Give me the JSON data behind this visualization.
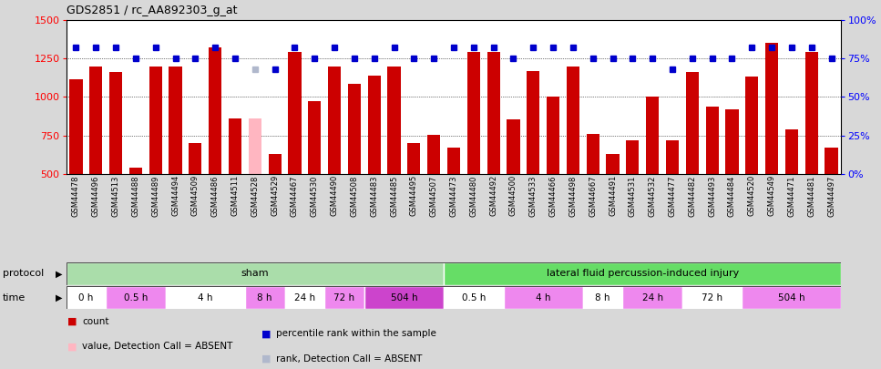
{
  "title": "GDS2851 / rc_AA892303_g_at",
  "samples": [
    "GSM44478",
    "GSM44496",
    "GSM44513",
    "GSM44488",
    "GSM44489",
    "GSM44494",
    "GSM44509",
    "GSM44486",
    "GSM44511",
    "GSM44528",
    "GSM44529",
    "GSM44467",
    "GSM44530",
    "GSM44490",
    "GSM44508",
    "GSM44483",
    "GSM44485",
    "GSM44495",
    "GSM44507",
    "GSM44473",
    "GSM44480",
    "GSM44492",
    "GSM44500",
    "GSM44533",
    "GSM44466",
    "GSM44498",
    "GSM44667",
    "GSM44491",
    "GSM44531",
    "GSM44532",
    "GSM44477",
    "GSM44482",
    "GSM44493",
    "GSM44484",
    "GSM44520",
    "GSM44549",
    "GSM44471",
    "GSM44481",
    "GSM44497"
  ],
  "bar_values": [
    1115,
    1195,
    1160,
    540,
    1195,
    1195,
    700,
    1320,
    860,
    860,
    630,
    1290,
    970,
    1195,
    1085,
    1140,
    1195,
    700,
    755,
    670,
    1290,
    1290,
    855,
    1170,
    1005,
    1195,
    760,
    630,
    720,
    1005,
    720,
    1160,
    935,
    920,
    1135,
    1350,
    790,
    1295,
    670
  ],
  "bar_absent": [
    false,
    false,
    false,
    false,
    false,
    false,
    false,
    false,
    false,
    true,
    false,
    false,
    false,
    false,
    false,
    false,
    false,
    false,
    false,
    false,
    false,
    false,
    false,
    false,
    false,
    false,
    false,
    false,
    false,
    false,
    false,
    false,
    false,
    false,
    false,
    false,
    false,
    false,
    false
  ],
  "dot_values": [
    82,
    82,
    82,
    75,
    82,
    75,
    75,
    82,
    75,
    68,
    68,
    82,
    75,
    82,
    75,
    75,
    82,
    75,
    75,
    82,
    82,
    82,
    75,
    82,
    82,
    82,
    75,
    75,
    75,
    75,
    68,
    75,
    75,
    75,
    82,
    82,
    82,
    82,
    75
  ],
  "dot_absent": [
    false,
    false,
    false,
    false,
    false,
    false,
    false,
    false,
    false,
    true,
    false,
    false,
    false,
    false,
    false,
    false,
    false,
    false,
    false,
    false,
    false,
    false,
    false,
    false,
    false,
    false,
    false,
    false,
    false,
    false,
    false,
    false,
    false,
    false,
    false,
    false,
    false,
    false,
    false
  ],
  "bar_color": "#cc0000",
  "bar_absent_color": "#ffb6c1",
  "dot_color": "#0000cc",
  "dot_absent_color": "#b0b8cc",
  "ylim_left": [
    500,
    1500
  ],
  "ylim_right": [
    0,
    100
  ],
  "yticks_left": [
    500,
    750,
    1000,
    1250,
    1500
  ],
  "yticks_right": [
    0,
    25,
    50,
    75,
    100
  ],
  "bg_color": "#d8d8d8",
  "plot_bg_color": "#ffffff",
  "protocol_groups": [
    {
      "label": "sham",
      "start": 0,
      "end": 19,
      "color": "#aaddaa"
    },
    {
      "label": "lateral fluid percussion-induced injury",
      "start": 19,
      "end": 39,
      "color": "#66dd66"
    }
  ],
  "time_groups": [
    {
      "label": "0 h",
      "start": 0,
      "end": 2,
      "color": "#ffffff"
    },
    {
      "label": "0.5 h",
      "start": 2,
      "end": 5,
      "color": "#ee88ee"
    },
    {
      "label": "4 h",
      "start": 5,
      "end": 9,
      "color": "#ffffff"
    },
    {
      "label": "8 h",
      "start": 9,
      "end": 11,
      "color": "#ee88ee"
    },
    {
      "label": "24 h",
      "start": 11,
      "end": 13,
      "color": "#ffffff"
    },
    {
      "label": "72 h",
      "start": 13,
      "end": 15,
      "color": "#ee88ee"
    },
    {
      "label": "504 h",
      "start": 15,
      "end": 19,
      "color": "#cc44cc"
    },
    {
      "label": "0.5 h",
      "start": 19,
      "end": 22,
      "color": "#ffffff"
    },
    {
      "label": "4 h",
      "start": 22,
      "end": 26,
      "color": "#ee88ee"
    },
    {
      "label": "8 h",
      "start": 26,
      "end": 28,
      "color": "#ffffff"
    },
    {
      "label": "24 h",
      "start": 28,
      "end": 31,
      "color": "#ee88ee"
    },
    {
      "label": "72 h",
      "start": 31,
      "end": 34,
      "color": "#ffffff"
    },
    {
      "label": "504 h",
      "start": 34,
      "end": 39,
      "color": "#ee88ee"
    }
  ],
  "legend_items": [
    {
      "label": "count",
      "color": "#cc0000"
    },
    {
      "label": "percentile rank within the sample",
      "color": "#0000cc"
    },
    {
      "label": "value, Detection Call = ABSENT",
      "color": "#ffb6c1"
    },
    {
      "label": "rank, Detection Call = ABSENT",
      "color": "#b0b8cc"
    }
  ]
}
